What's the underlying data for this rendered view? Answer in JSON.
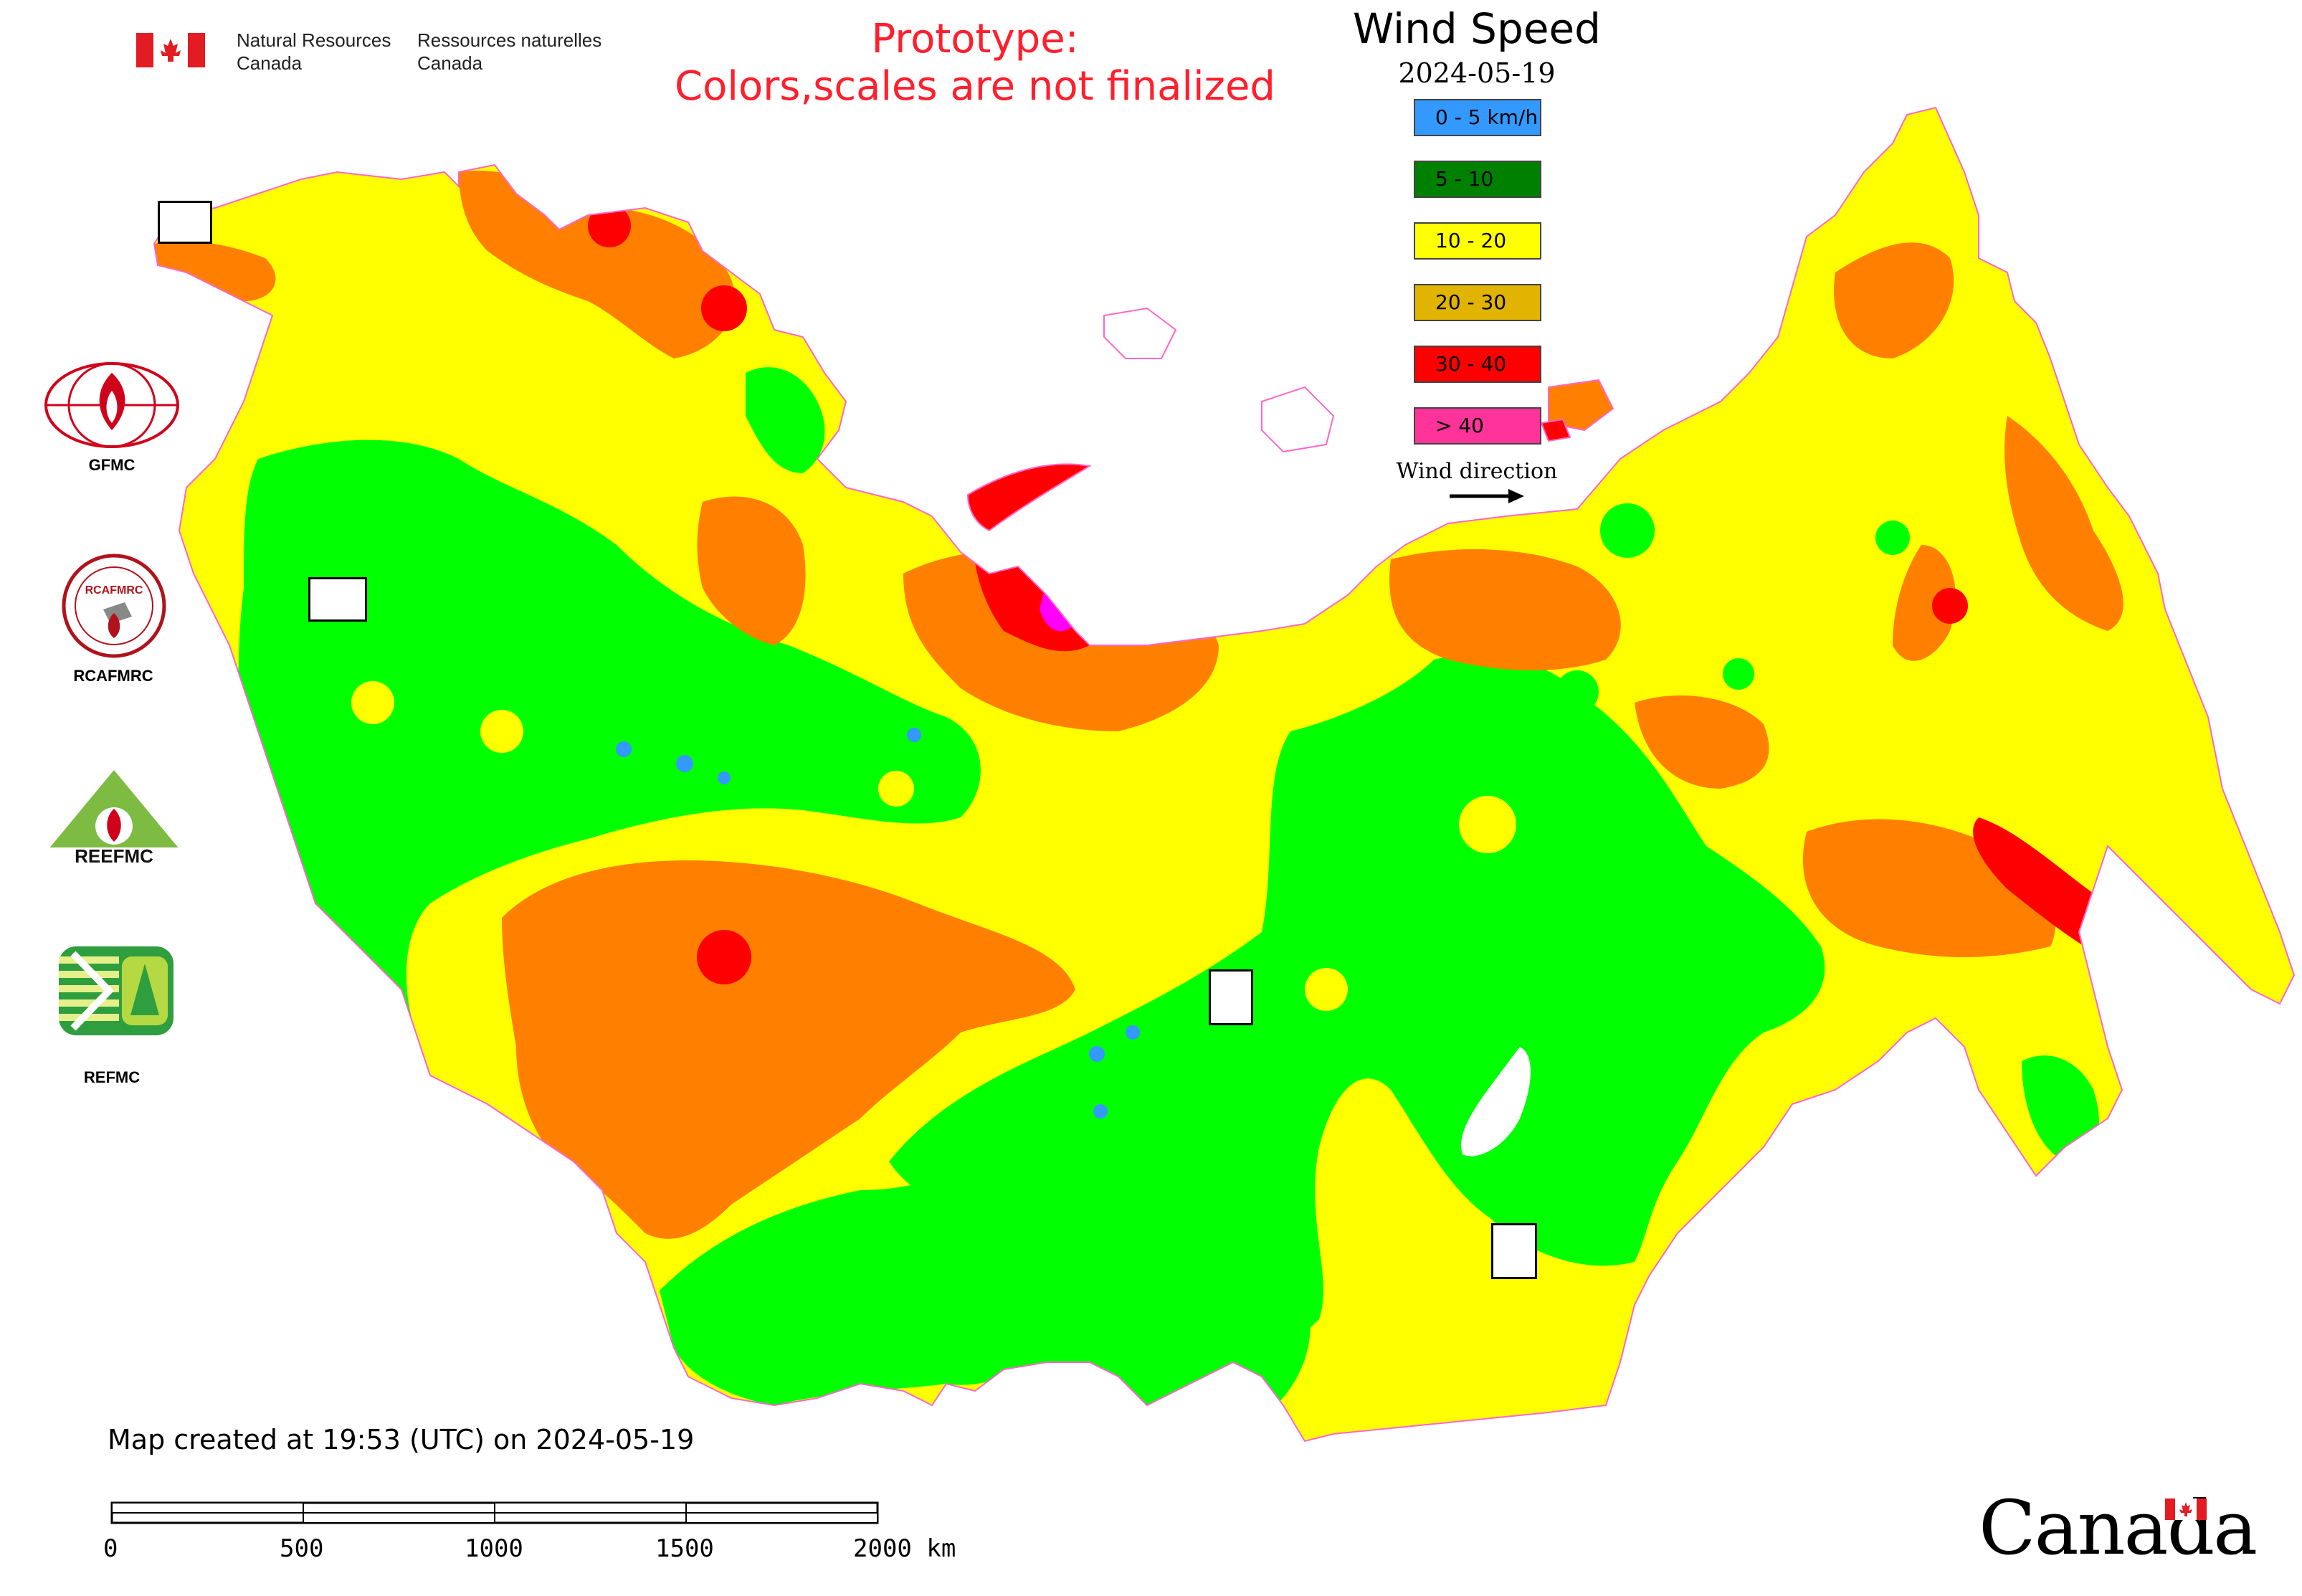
{
  "header": {
    "agency_en_line1": "Natural Resources",
    "agency_en_line2": "Canada",
    "agency_fr_line1": "Ressources naturelles",
    "agency_fr_line2": "Canada",
    "prototype_line1": "Prototype:",
    "prototype_line2": "Colors,scales are not finalized"
  },
  "legend": {
    "title": "Wind Speed",
    "date": "2024-05-19",
    "items": [
      {
        "label": "0 - 5 km/h",
        "color": "#3399ff"
      },
      {
        "label": "5 - 10",
        "color": "#008000"
      },
      {
        "label": "10 - 20",
        "color": "#ffff00"
      },
      {
        "label": "20 - 30",
        "color": "#e0b400"
      },
      {
        "label": "30 - 40",
        "color": "#ff0000"
      },
      {
        "label": "> 40",
        "color": "#ff3399"
      }
    ],
    "wind_direction_label": "Wind direction"
  },
  "map_colors": {
    "calm": "#3399ff",
    "light": "#00ff00",
    "moderate": "#ffff00",
    "fresh": "#ff8000",
    "strong": "#ff0000",
    "gale": "#ff00ff"
  },
  "logos": {
    "gfmc": "GFMC",
    "rcafmrc": "RCAFMRC",
    "reefmc": "REEFMC",
    "refmc": "REFMC",
    "reefmc_wordmark": "REEFMC",
    "rcafmrc_wordmark": "RCAFMRC"
  },
  "footer": {
    "created": "Map created at 19:53 (UTC) on 2024-05-19",
    "scale_labels": [
      "0",
      "500",
      "1000",
      "1500",
      "2000 km"
    ],
    "canada_wordmark": "Canada"
  }
}
